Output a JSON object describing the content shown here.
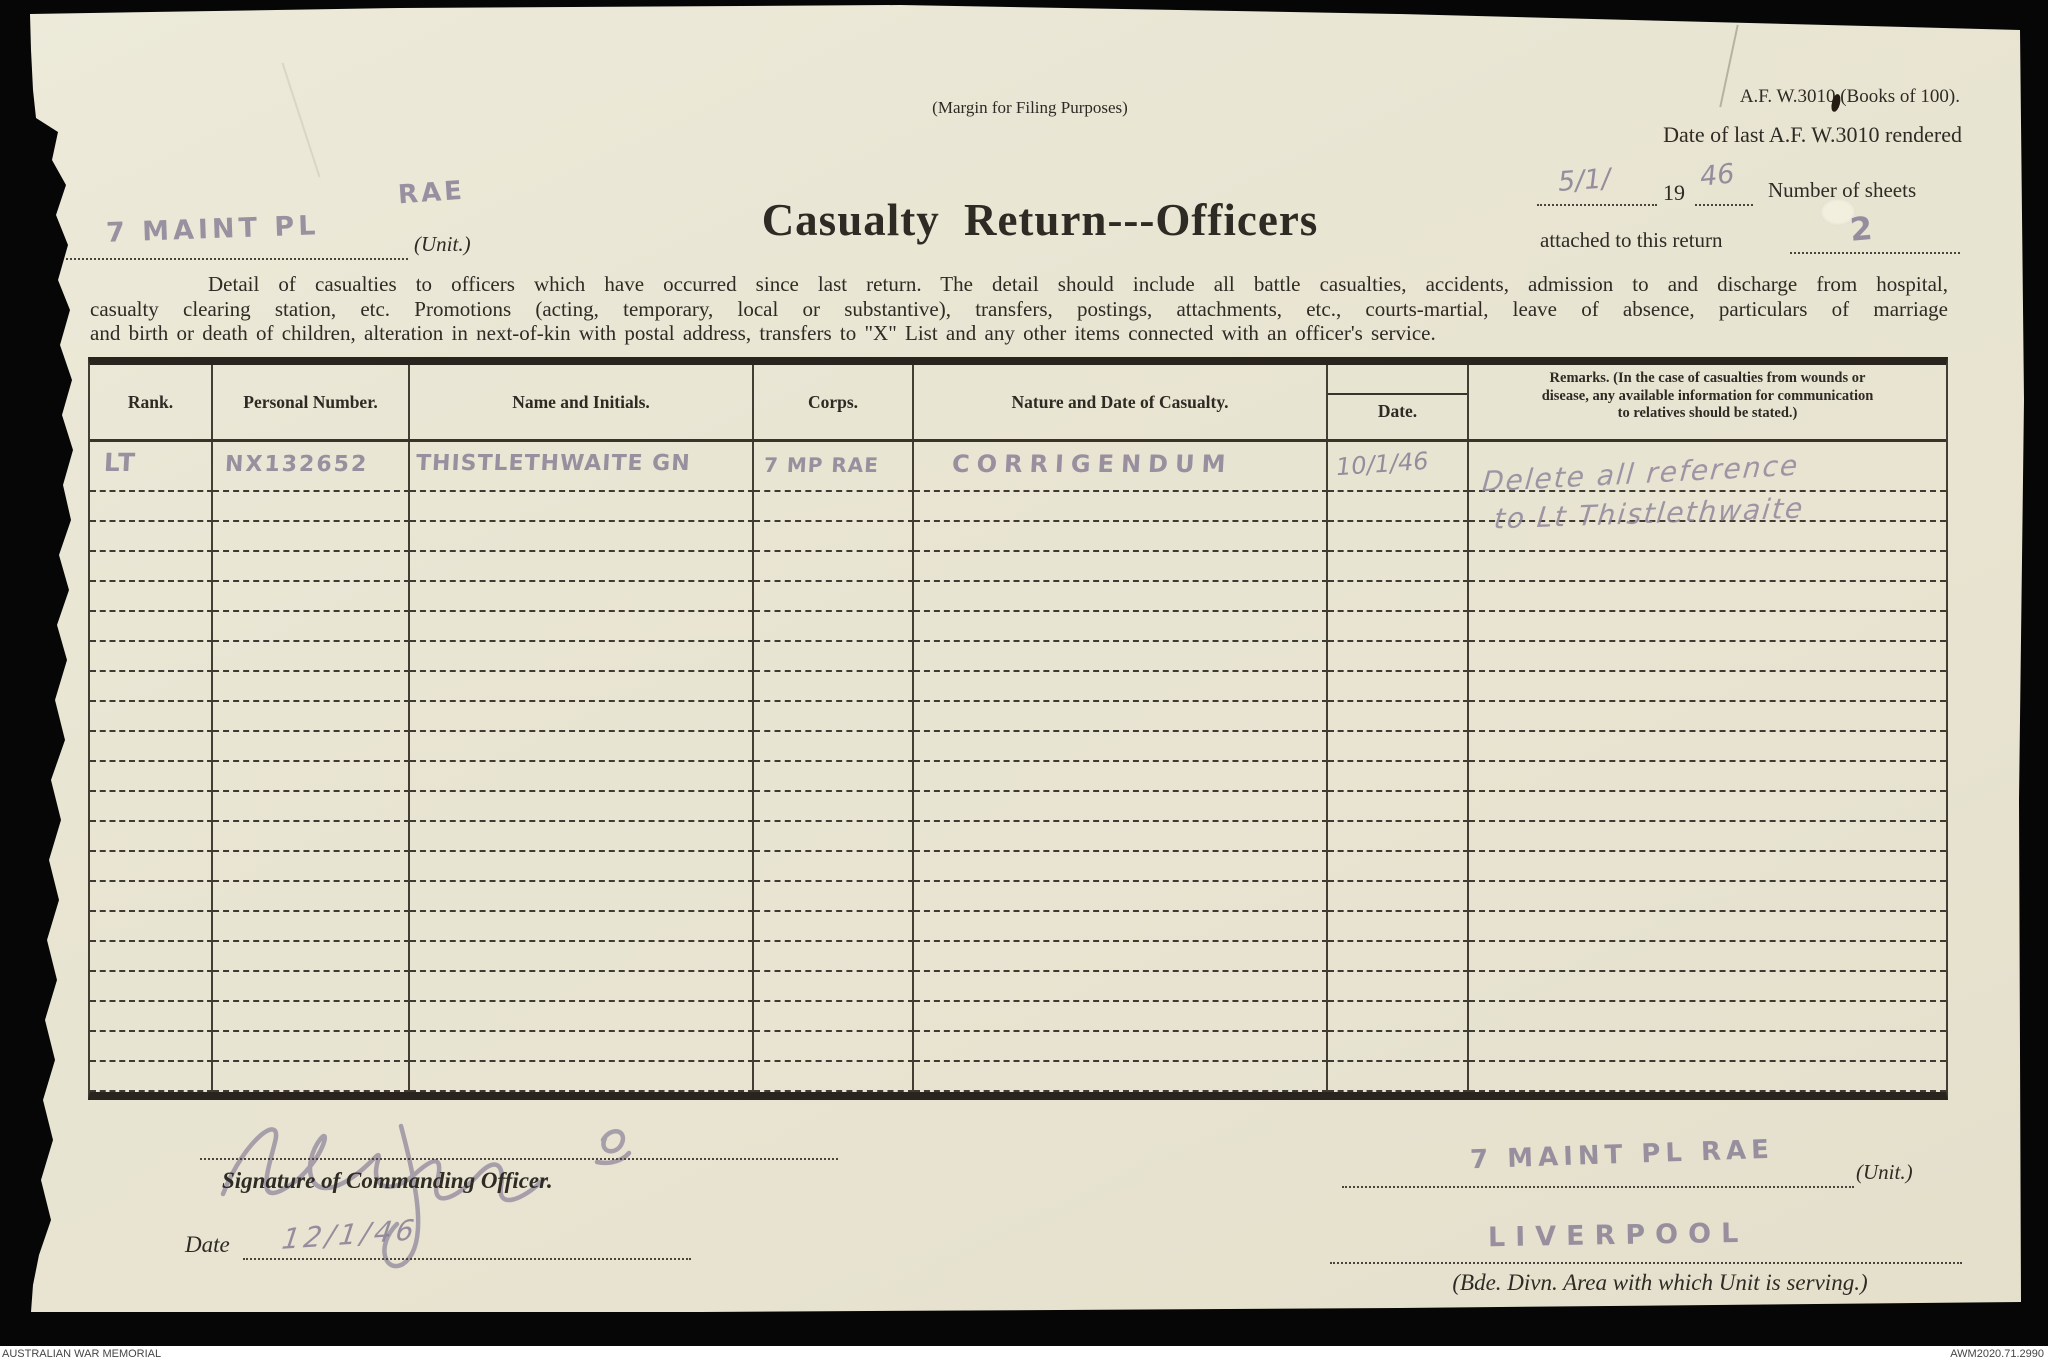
{
  "colors": {
    "paper": "#e9e5d3",
    "ink": "#2e2a24",
    "pencil": "#877e94",
    "scan_background": "#060606"
  },
  "document": {
    "margin_note": "(Margin for Filing Purposes)",
    "form_number": "A.F. W.3010 (Books of 100).",
    "date_last_label": "Date of last A.F. W.3010 rendered",
    "date_last_value": "5/1/",
    "year_prefix_printed": "19",
    "year_value": "46",
    "sheets_label_line1": "Number of sheets",
    "sheets_label_line2": "attached to this return",
    "sheets_value": "2",
    "unit_value_line1": "RAE",
    "unit_value_line2": "7 MAINT PL",
    "unit_label": "(Unit.)",
    "title": "Casualty Return---Officers",
    "instructions_line1": "Detail of casualties to officers which have occurred since last return.  The detail should include all battle casualties, accidents, admission to and discharge from hospital,",
    "instructions_line2": "casualty clearing station, etc.  Promotions (acting, temporary, local or substantive), transfers, postings, attachments, etc., courts-martial, leave of absence, particulars of marriage",
    "instructions_line3": "and birth or death of children, alteration in next-of-kin with postal address, transfers to \"X\" List and any other items connected with an officer's service."
  },
  "table": {
    "headers": {
      "rank": "Rank.",
      "personal_number": "Personal Number.",
      "name": "Name and Initials.",
      "corps": "Corps.",
      "nature": "Nature and Date of Casualty.",
      "date": "Date.",
      "remarks_line1": "Remarks.  (In the case of casualties from wounds or",
      "remarks_line2": "disease, any available information for communication",
      "remarks_line3": "to relatives should be stated.)"
    },
    "entry": {
      "rank": "LT",
      "personal_number": "NX132652",
      "name": "THISTLETHWAITE GN",
      "corps": "7 MP RAE",
      "nature": "CORRIGENDUM",
      "date": "10/1/46",
      "remarks_line1": "Delete all reference",
      "remarks_line2": "to Lt Thistlethwaite"
    },
    "empty_row_count": 20
  },
  "signature_block": {
    "signature_label": "Signature of Commanding Officer.",
    "date_label": "Date",
    "date_value": "12/1/46",
    "unit_value": "7 MAINT PL RAE",
    "unit_label": "(Unit.)",
    "area_value": "LIVERPOOL",
    "area_label": "(Bde. Divn. Area with which Unit is serving.)"
  },
  "scan_footer": {
    "left": "AUSTRALIAN WAR MEMORIAL",
    "right": "AWM2020.71.2990"
  }
}
